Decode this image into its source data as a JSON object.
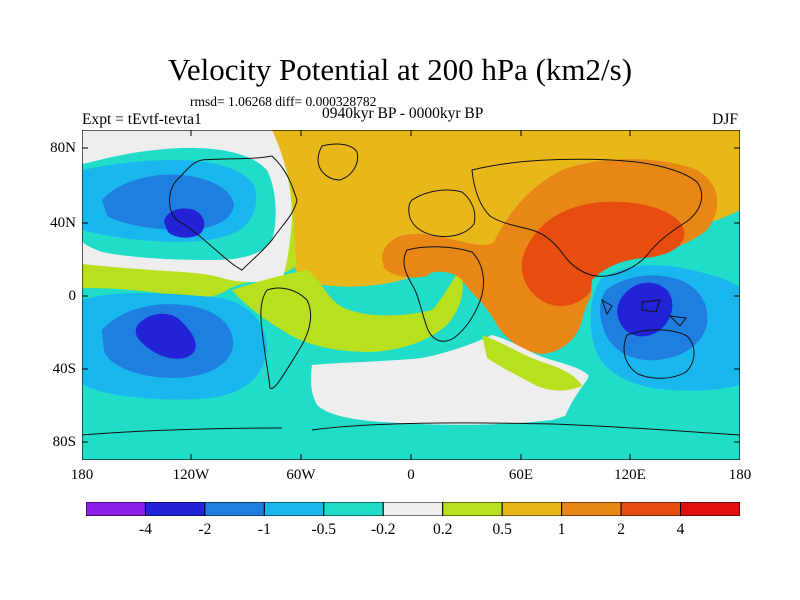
{
  "title": "Velocity Potential at 200 hPa (km2/s)",
  "stats": "rmsd= 1.06268 diff= 0.000328782",
  "experiment": "Expt = tEvtf-tevta1",
  "period": "0940kyr BP - 0000kyr BP",
  "season": "DJF",
  "lat_ticks": [
    "80N",
    "40N",
    "0",
    "40S",
    "80S"
  ],
  "lon_ticks": [
    "180",
    "120W",
    "60W",
    "0",
    "60E",
    "120E",
    "180"
  ],
  "colorbar": {
    "colors": [
      "#8b1ee8",
      "#2222d6",
      "#1f7fe0",
      "#19b7ee",
      "#20dcc8",
      "#eeeeee",
      "#b8e01e",
      "#e8b81a",
      "#e88616",
      "#e84d10",
      "#e01010"
    ],
    "labels": [
      "-4",
      "-2",
      "-1",
      "-0.5",
      "-0.2",
      "0.2",
      "0.5",
      "1",
      "2",
      "4"
    ]
  },
  "colors": {
    "neg4": "#2222d6",
    "neg2": "#1f7fe0",
    "neg1": "#19b7ee",
    "neg05": "#20dcc8",
    "zero": "#eeeeee",
    "pos02": "#b8e01e",
    "pos05": "#e8b81a",
    "pos1": "#e88616",
    "pos2": "#e84d10"
  }
}
